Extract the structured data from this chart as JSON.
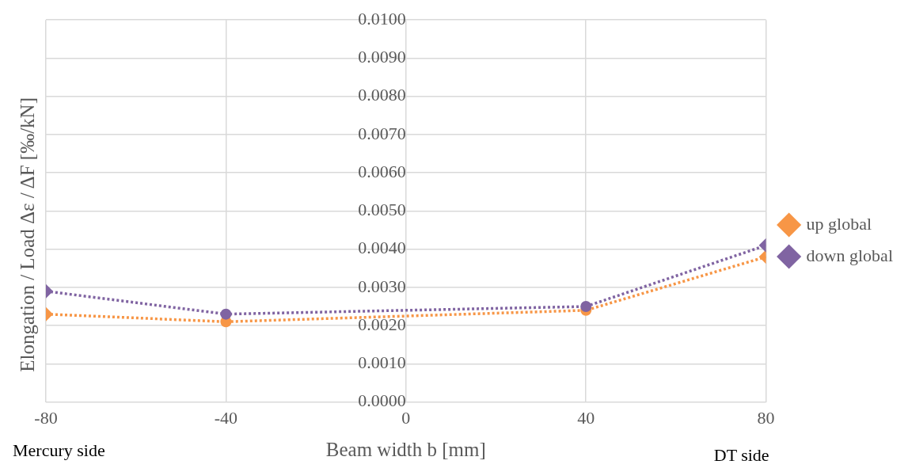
{
  "chart_data": {
    "type": "line",
    "xlabel": "Beam width b [mm]",
    "ylabel": "Elongation / Load Δε / ΔF [‰/kN]",
    "x": [
      -80,
      -40,
      40,
      80
    ],
    "series": [
      {
        "name": "up global",
        "color": "#f79646",
        "values": [
          0.0023,
          0.0021,
          0.0024,
          0.0038
        ]
      },
      {
        "name": "down global",
        "color": "#8064a2",
        "values": [
          0.0029,
          0.0023,
          0.0025,
          0.0041
        ]
      }
    ],
    "xlim": [
      -80,
      80
    ],
    "xticks": [
      -80,
      -40,
      0,
      40,
      80
    ],
    "ylim": [
      0,
      0.01
    ],
    "yticks": [
      {
        "value": 0,
        "label": "0.0000"
      },
      {
        "value": 0.001,
        "label": "0.0010"
      },
      {
        "value": 0.002,
        "label": "0.0020"
      },
      {
        "value": 0.003,
        "label": "0.0030"
      },
      {
        "value": 0.004,
        "label": "0.0040"
      },
      {
        "value": 0.005,
        "label": "0.0050"
      },
      {
        "value": 0.006,
        "label": "0.0060"
      },
      {
        "value": 0.007,
        "label": "0.0070"
      },
      {
        "value": 0.008,
        "label": "0.0080"
      },
      {
        "value": 0.009,
        "label": "0.0090"
      },
      {
        "value": 0.01,
        "label": "0.0100"
      }
    ],
    "annotations": [
      "Mercury side",
      "DT side"
    ],
    "grid": true,
    "legend": "right",
    "marker": [
      "diamond",
      "circle",
      "circle",
      "diamond"
    ],
    "line_style": "dotted"
  }
}
